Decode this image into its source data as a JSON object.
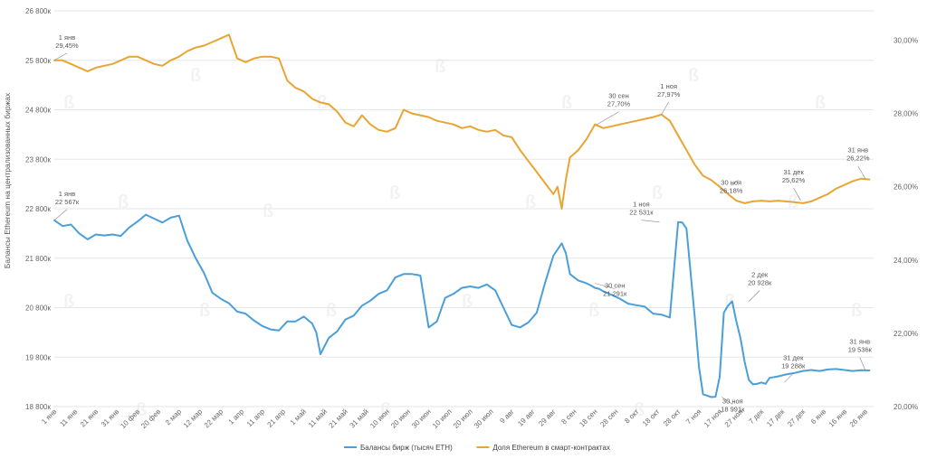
{
  "chart_data": {
    "type": "line",
    "ylabel": "Балансы Ethereum на централизованных биржах",
    "left_axis": {
      "ticks": [
        18800,
        19800,
        20800,
        21800,
        22800,
        23800,
        24800,
        25800,
        26800
      ],
      "tick_labels": [
        "18 800к",
        "19 800к",
        "20 800к",
        "21 800к",
        "22 800к",
        "23 800к",
        "24 800к",
        "25 800к",
        "26 800к"
      ],
      "range": [
        18800,
        26800
      ]
    },
    "right_axis": {
      "ticks": [
        20,
        22,
        24,
        26,
        28,
        30
      ],
      "tick_labels": [
        "20,00%",
        "22,00%",
        "24,00%",
        "26,00%",
        "28,00%",
        "30,00%"
      ],
      "range": [
        20,
        30.8
      ]
    },
    "x_tick_labels": [
      "1 янв",
      "11 янв",
      "21 янв",
      "31 янв",
      "10 фев",
      "20 фев",
      "2 мар",
      "12 мар",
      "22 мар",
      "1 апр",
      "11 апр",
      "21 апр",
      "1 май",
      "11 май",
      "21 май",
      "31 май",
      "10 июн",
      "20 июн",
      "30 июн",
      "10 июл",
      "20 июл",
      "30 июл",
      "9 авг",
      "19 авг",
      "29 авг",
      "8 сен",
      "18 сен",
      "28 сен",
      "8 окт",
      "18 окт",
      "28 окт",
      "7 ноя",
      "17 ноя",
      "27 ноя",
      "7 дек",
      "17 дек",
      "27 дек",
      "6 янв",
      "16 янв",
      "26 янв"
    ],
    "x_days": [
      0,
      10,
      20,
      30,
      40,
      50,
      60,
      70,
      80,
      90,
      100,
      110,
      120,
      130,
      140,
      150,
      160,
      170,
      180,
      190,
      200,
      210,
      220,
      230,
      240,
      250,
      260,
      270,
      280,
      290,
      300,
      310,
      320,
      330,
      340,
      350,
      360,
      370,
      380,
      390
    ],
    "x_range": [
      0,
      394
    ],
    "legend_placement": "bottom",
    "grid": true,
    "series": [
      {
        "name": "Балансы бирж (тысяч ETH)",
        "axis": "left",
        "color": "#4a9fd8",
        "x": [
          0,
          4,
          8,
          12,
          16,
          20,
          24,
          28,
          32,
          36,
          40,
          44,
          48,
          52,
          56,
          60,
          64,
          68,
          72,
          76,
          80,
          84,
          88,
          92,
          96,
          100,
          104,
          108,
          112,
          116,
          120,
          124,
          126,
          128,
          132,
          136,
          140,
          144,
          148,
          152,
          156,
          160,
          164,
          168,
          172,
          176,
          180,
          184,
          188,
          192,
          196,
          200,
          204,
          208,
          212,
          216,
          220,
          224,
          228,
          232,
          236,
          240,
          244,
          246,
          248,
          252,
          256,
          258,
          260,
          262,
          264,
          268,
          272,
          276,
          280,
          284,
          288,
          292,
          296,
          300,
          302,
          304,
          306,
          308,
          310,
          312,
          316,
          318,
          320,
          322,
          324,
          326,
          328,
          330,
          332,
          334,
          336,
          338,
          340,
          342,
          344,
          348,
          352,
          356,
          360,
          364,
          368,
          372,
          376,
          380,
          384,
          388,
          392
        ],
        "values": [
          22567,
          22450,
          22480,
          22300,
          22180,
          22280,
          22260,
          22280,
          22250,
          22420,
          22540,
          22680,
          22600,
          22520,
          22620,
          22660,
          22150,
          21800,
          21500,
          21100,
          20980,
          20890,
          20720,
          20680,
          20540,
          20430,
          20360,
          20340,
          20520,
          20520,
          20620,
          20480,
          20300,
          19860,
          20190,
          20320,
          20560,
          20640,
          20840,
          20940,
          21080,
          21150,
          21410,
          21480,
          21480,
          21450,
          20400,
          20520,
          21000,
          21080,
          21200,
          21230,
          21200,
          21270,
          21150,
          20800,
          20450,
          20400,
          20500,
          20700,
          21300,
          21850,
          22100,
          21900,
          21480,
          21350,
          21291,
          21250,
          21200,
          21180,
          21130,
          21060,
          20980,
          20880,
          20850,
          20820,
          20680,
          20660,
          20600,
          22531,
          22520,
          22400,
          21500,
          20600,
          19600,
          19050,
          18991,
          19000,
          19400,
          20700,
          20840,
          20928,
          20520,
          20180,
          19700,
          19340,
          19250,
          19260,
          19288,
          19260,
          19380,
          19410,
          19450,
          19480,
          19520,
          19540,
          19520,
          19550,
          19560,
          19540,
          19520,
          19536,
          19530
        ]
      },
      {
        "name": "Доля Ethereum в смарт-контрактах",
        "axis": "right",
        "color": "#e8a534",
        "x": [
          0,
          4,
          8,
          12,
          16,
          20,
          24,
          28,
          32,
          36,
          40,
          44,
          48,
          52,
          56,
          60,
          64,
          68,
          72,
          76,
          80,
          84,
          88,
          92,
          96,
          100,
          104,
          108,
          112,
          116,
          120,
          124,
          128,
          132,
          136,
          140,
          144,
          148,
          152,
          156,
          160,
          164,
          168,
          172,
          176,
          180,
          184,
          188,
          192,
          196,
          200,
          204,
          208,
          212,
          216,
          220,
          224,
          228,
          232,
          236,
          240,
          242,
          244,
          246,
          248,
          250,
          252,
          256,
          260,
          264,
          268,
          272,
          276,
          280,
          284,
          288,
          292,
          296,
          300,
          304,
          308,
          312,
          316,
          320,
          324,
          328,
          332,
          336,
          340,
          344,
          348,
          352,
          356,
          360,
          364,
          368,
          372,
          376,
          380,
          384,
          388,
          392
        ],
        "values": [
          29.45,
          29.45,
          29.35,
          29.25,
          29.15,
          29.25,
          29.3,
          29.35,
          29.45,
          29.55,
          29.55,
          29.45,
          29.35,
          29.3,
          29.45,
          29.55,
          29.7,
          29.8,
          29.85,
          29.95,
          30.05,
          30.15,
          29.5,
          29.4,
          29.5,
          29.55,
          29.55,
          29.5,
          28.9,
          28.7,
          28.6,
          28.4,
          28.3,
          28.25,
          28.05,
          27.75,
          27.65,
          27.95,
          27.7,
          27.55,
          27.5,
          27.6,
          28.1,
          28.0,
          27.95,
          27.9,
          27.8,
          27.75,
          27.7,
          27.6,
          27.65,
          27.55,
          27.5,
          27.55,
          27.4,
          27.35,
          27.0,
          26.7,
          26.4,
          26.1,
          25.8,
          26.0,
          25.4,
          26.2,
          26.8,
          26.9,
          27.0,
          27.3,
          27.7,
          27.6,
          27.65,
          27.7,
          27.75,
          27.8,
          27.85,
          27.9,
          27.97,
          27.8,
          27.4,
          27.0,
          26.6,
          26.3,
          26.18,
          26.0,
          25.8,
          25.62,
          25.55,
          25.6,
          25.62,
          25.6,
          25.62,
          25.6,
          25.58,
          25.55,
          25.6,
          25.7,
          25.8,
          25.95,
          26.05,
          26.15,
          26.22,
          26.2
        ]
      }
    ],
    "annotations": [
      {
        "series": 1,
        "x": 0,
        "value": 29.45,
        "lines": [
          "1 янв",
          "29,45%"
        ]
      },
      {
        "series": 0,
        "x": 0,
        "value": 22567,
        "lines": [
          "1 янв",
          "22 567к"
        ]
      },
      {
        "series": 1,
        "x": 261,
        "value": 27.7,
        "lines": [
          "30 сен",
          "27,70%"
        ]
      },
      {
        "series": 1,
        "x": 292,
        "value": 27.97,
        "lines": [
          "1 ноя",
          "27,97%"
        ]
      },
      {
        "series": 1,
        "x": 329,
        "value": 26.18,
        "lines": [
          "30 ноя",
          "26,18%"
        ]
      },
      {
        "series": 1,
        "x": 359,
        "value": 25.62,
        "lines": [
          "31 дек",
          "25,62%"
        ]
      },
      {
        "series": 1,
        "x": 390,
        "value": 26.22,
        "lines": [
          "31 янв",
          "26,22%"
        ]
      },
      {
        "series": 0,
        "x": 291,
        "value": 22531,
        "lines": [
          "1 ноя",
          "22 531к"
        ]
      },
      {
        "series": 0,
        "x": 260,
        "value": 21291,
        "lines": [
          "30 сен",
          "21 291к"
        ]
      },
      {
        "series": 0,
        "x": 334,
        "value": 20928,
        "lines": [
          "2 дек",
          "20 928к"
        ]
      },
      {
        "series": 0,
        "x": 351,
        "value": 19288,
        "lines": [
          "31 дек",
          "19 288к"
        ]
      },
      {
        "series": 0,
        "x": 321,
        "value": 18991,
        "lines": [
          "30 ноя",
          "18 991к"
        ]
      },
      {
        "series": 0,
        "x": 390,
        "value": 19536,
        "lines": [
          "31 янв",
          "19 536к"
        ]
      }
    ]
  }
}
